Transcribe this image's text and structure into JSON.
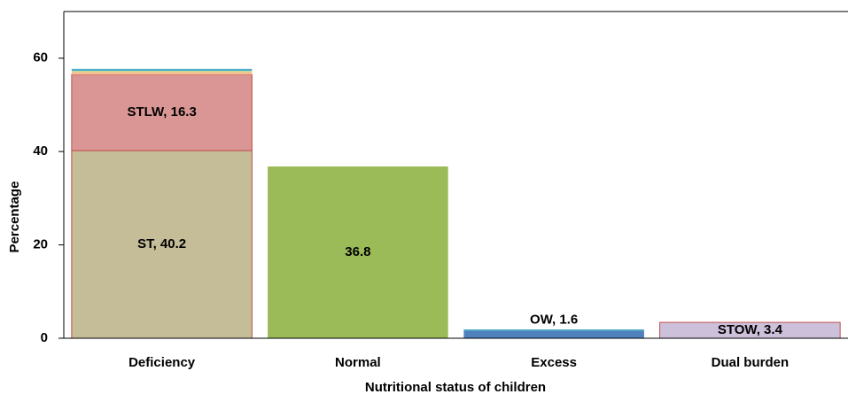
{
  "chart_data": {
    "type": "stacked_bar",
    "x_label": "Nutritional status of children",
    "y_label": "Percentage",
    "categories": [
      "Deficiency",
      "Normal",
      "Excess",
      "Dual burden"
    ],
    "ylim": [
      0,
      70
    ],
    "yticks": [
      0,
      20,
      40,
      60
    ],
    "grid": false,
    "series": [
      {
        "name": "ST",
        "color": "#c4bd97",
        "border": "#c0504d",
        "values": [
          40.2,
          null,
          null,
          null
        ],
        "value_labels": [
          "ST, 40.2",
          null,
          null,
          null
        ]
      },
      {
        "name": "STLW",
        "color": "#d99694",
        "border": "#c0504d",
        "values": [
          16.3,
          null,
          null,
          null
        ],
        "value_labels": [
          "STLW, 16.3",
          null,
          null,
          null
        ]
      },
      {
        "color": "#fac090",
        "values": [
          0.5,
          null,
          null,
          null
        ]
      },
      {
        "color": "#c3d69b",
        "values": [
          0.3,
          null,
          null,
          null
        ]
      },
      {
        "color": "#4bacc6",
        "values": [
          0.4,
          null,
          null,
          null
        ]
      },
      {
        "color": "#9bbb59",
        "values": [
          null,
          36.8,
          null,
          null
        ]
      },
      {
        "name": "OW",
        "color": "#4f81bd",
        "values": [
          null,
          null,
          1.6,
          null
        ],
        "value_labels": [
          null,
          null,
          "OW, 1.6",
          null
        ]
      },
      {
        "color": "#4bacc6",
        "values": [
          null,
          null,
          0.3,
          null
        ]
      },
      {
        "name": "STOW",
        "color": "#ccc0da",
        "border": "#c0504d",
        "values": [
          null,
          null,
          null,
          3.4
        ],
        "value_labels": [
          null,
          null,
          null,
          "STOW, 3.4"
        ]
      }
    ]
  }
}
